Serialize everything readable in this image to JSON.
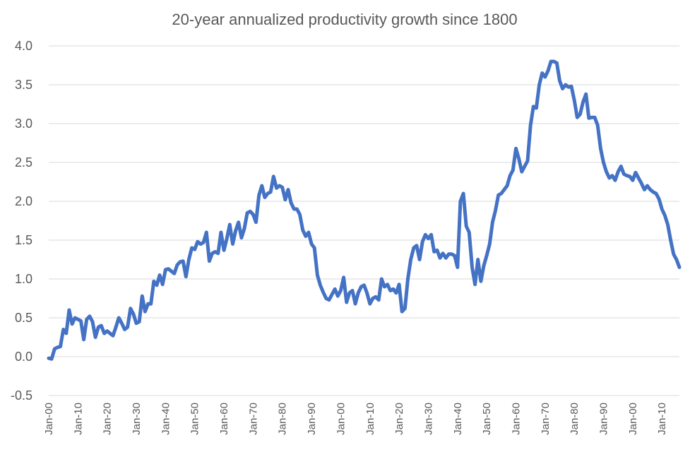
{
  "chart_data": {
    "type": "line",
    "title": "20-year annualized productivity growth since 1800",
    "xlabel": "",
    "ylabel": "",
    "ylim": [
      -0.5,
      4.0
    ],
    "yticks": [
      "-0.5",
      "0.0",
      "0.5",
      "1.0",
      "1.5",
      "2.0",
      "2.5",
      "3.0",
      "3.5",
      "4.0"
    ],
    "xticks": [
      {
        "label": "Jan-00",
        "year": 1800
      },
      {
        "label": "Jan-10",
        "year": 1810
      },
      {
        "label": "Jan-20",
        "year": 1820
      },
      {
        "label": "Jan-30",
        "year": 1830
      },
      {
        "label": "Jan-40",
        "year": 1840
      },
      {
        "label": "Jan-50",
        "year": 1850
      },
      {
        "label": "Jan-60",
        "year": 1860
      },
      {
        "label": "Jan-70",
        "year": 1870
      },
      {
        "label": "Jan-80",
        "year": 1880
      },
      {
        "label": "Jan-90",
        "year": 1890
      },
      {
        "label": "Jan-00",
        "year": 1900
      },
      {
        "label": "Jan-10",
        "year": 1910
      },
      {
        "label": "Jan-20",
        "year": 1920
      },
      {
        "label": "Jan-30",
        "year": 1930
      },
      {
        "label": "Jan-40",
        "year": 1940
      },
      {
        "label": "Jan-50",
        "year": 1950
      },
      {
        "label": "Jan-60",
        "year": 1960
      },
      {
        "label": "Jan-70",
        "year": 1970
      },
      {
        "label": "Jan-80",
        "year": 1980
      },
      {
        "label": "Jan-90",
        "year": 1990
      },
      {
        "label": "Jan-00",
        "year": 2000
      },
      {
        "label": "Jan-10",
        "year": 2010
      }
    ],
    "xlim": [
      1800,
      2016
    ],
    "grid": true,
    "legend": "none",
    "series": [
      {
        "color": "#4472c4",
        "points": [
          [
            1800,
            -0.02
          ],
          [
            1801,
            -0.03
          ],
          [
            1802,
            0.1
          ],
          [
            1803,
            0.12
          ],
          [
            1804,
            0.13
          ],
          [
            1805,
            0.35
          ],
          [
            1806,
            0.3
          ],
          [
            1807,
            0.6
          ],
          [
            1808,
            0.42
          ],
          [
            1809,
            0.5
          ],
          [
            1810,
            0.48
          ],
          [
            1811,
            0.46
          ],
          [
            1812,
            0.22
          ],
          [
            1813,
            0.48
          ],
          [
            1814,
            0.52
          ],
          [
            1815,
            0.45
          ],
          [
            1816,
            0.25
          ],
          [
            1817,
            0.38
          ],
          [
            1818,
            0.4
          ],
          [
            1819,
            0.3
          ],
          [
            1820,
            0.33
          ],
          [
            1821,
            0.3
          ],
          [
            1822,
            0.27
          ],
          [
            1823,
            0.38
          ],
          [
            1824,
            0.5
          ],
          [
            1825,
            0.43
          ],
          [
            1826,
            0.35
          ],
          [
            1827,
            0.38
          ],
          [
            1828,
            0.62
          ],
          [
            1829,
            0.55
          ],
          [
            1830,
            0.43
          ],
          [
            1831,
            0.45
          ],
          [
            1832,
            0.78
          ],
          [
            1833,
            0.58
          ],
          [
            1834,
            0.68
          ],
          [
            1835,
            0.68
          ],
          [
            1836,
            0.97
          ],
          [
            1837,
            0.92
          ],
          [
            1838,
            1.05
          ],
          [
            1839,
            0.93
          ],
          [
            1840,
            1.12
          ],
          [
            1841,
            1.13
          ],
          [
            1842,
            1.1
          ],
          [
            1843,
            1.07
          ],
          [
            1844,
            1.18
          ],
          [
            1845,
            1.22
          ],
          [
            1846,
            1.23
          ],
          [
            1847,
            1.03
          ],
          [
            1848,
            1.25
          ],
          [
            1849,
            1.4
          ],
          [
            1850,
            1.38
          ],
          [
            1851,
            1.48
          ],
          [
            1852,
            1.45
          ],
          [
            1853,
            1.47
          ],
          [
            1854,
            1.6
          ],
          [
            1855,
            1.23
          ],
          [
            1856,
            1.33
          ],
          [
            1857,
            1.35
          ],
          [
            1858,
            1.33
          ],
          [
            1859,
            1.6
          ],
          [
            1860,
            1.37
          ],
          [
            1861,
            1.52
          ],
          [
            1862,
            1.7
          ],
          [
            1863,
            1.45
          ],
          [
            1864,
            1.62
          ],
          [
            1865,
            1.73
          ],
          [
            1866,
            1.53
          ],
          [
            1867,
            1.65
          ],
          [
            1868,
            1.85
          ],
          [
            1869,
            1.87
          ],
          [
            1870,
            1.83
          ],
          [
            1871,
            1.73
          ],
          [
            1872,
            2.08
          ],
          [
            1873,
            2.2
          ],
          [
            1874,
            2.05
          ],
          [
            1875,
            2.1
          ],
          [
            1876,
            2.12
          ],
          [
            1877,
            2.32
          ],
          [
            1878,
            2.17
          ],
          [
            1879,
            2.2
          ],
          [
            1880,
            2.18
          ],
          [
            1881,
            2.02
          ],
          [
            1882,
            2.15
          ],
          [
            1883,
            1.98
          ],
          [
            1884,
            1.9
          ],
          [
            1885,
            1.9
          ],
          [
            1886,
            1.83
          ],
          [
            1887,
            1.63
          ],
          [
            1888,
            1.55
          ],
          [
            1889,
            1.6
          ],
          [
            1890,
            1.45
          ],
          [
            1891,
            1.4
          ],
          [
            1892,
            1.05
          ],
          [
            1893,
            0.92
          ],
          [
            1894,
            0.83
          ],
          [
            1895,
            0.75
          ],
          [
            1896,
            0.73
          ],
          [
            1897,
            0.8
          ],
          [
            1898,
            0.87
          ],
          [
            1899,
            0.78
          ],
          [
            1900,
            0.85
          ],
          [
            1901,
            1.02
          ],
          [
            1902,
            0.7
          ],
          [
            1903,
            0.82
          ],
          [
            1904,
            0.85
          ],
          [
            1905,
            0.68
          ],
          [
            1906,
            0.82
          ],
          [
            1907,
            0.9
          ],
          [
            1908,
            0.92
          ],
          [
            1909,
            0.82
          ],
          [
            1910,
            0.68
          ],
          [
            1911,
            0.75
          ],
          [
            1912,
            0.77
          ],
          [
            1913,
            0.73
          ],
          [
            1914,
            1.0
          ],
          [
            1915,
            0.9
          ],
          [
            1916,
            0.93
          ],
          [
            1917,
            0.85
          ],
          [
            1918,
            0.87
          ],
          [
            1919,
            0.82
          ],
          [
            1920,
            0.93
          ],
          [
            1921,
            0.58
          ],
          [
            1922,
            0.62
          ],
          [
            1923,
            1.0
          ],
          [
            1924,
            1.25
          ],
          [
            1925,
            1.4
          ],
          [
            1926,
            1.43
          ],
          [
            1927,
            1.25
          ],
          [
            1928,
            1.48
          ],
          [
            1929,
            1.57
          ],
          [
            1930,
            1.52
          ],
          [
            1931,
            1.57
          ],
          [
            1932,
            1.35
          ],
          [
            1933,
            1.37
          ],
          [
            1934,
            1.27
          ],
          [
            1935,
            1.33
          ],
          [
            1936,
            1.27
          ],
          [
            1937,
            1.32
          ],
          [
            1938,
            1.32
          ],
          [
            1939,
            1.3
          ],
          [
            1940,
            1.15
          ],
          [
            1941,
            2.0
          ],
          [
            1942,
            2.1
          ],
          [
            1943,
            1.68
          ],
          [
            1944,
            1.6
          ],
          [
            1945,
            1.15
          ],
          [
            1946,
            0.93
          ],
          [
            1947,
            1.25
          ],
          [
            1948,
            0.97
          ],
          [
            1949,
            1.17
          ],
          [
            1950,
            1.3
          ],
          [
            1951,
            1.45
          ],
          [
            1952,
            1.73
          ],
          [
            1953,
            1.88
          ],
          [
            1954,
            2.08
          ],
          [
            1955,
            2.1
          ],
          [
            1956,
            2.15
          ],
          [
            1957,
            2.2
          ],
          [
            1958,
            2.33
          ],
          [
            1959,
            2.4
          ],
          [
            1960,
            2.68
          ],
          [
            1961,
            2.55
          ],
          [
            1962,
            2.38
          ],
          [
            1963,
            2.45
          ],
          [
            1964,
            2.52
          ],
          [
            1965,
            2.98
          ],
          [
            1966,
            3.22
          ],
          [
            1967,
            3.2
          ],
          [
            1968,
            3.5
          ],
          [
            1969,
            3.65
          ],
          [
            1970,
            3.6
          ],
          [
            1971,
            3.68
          ],
          [
            1972,
            3.8
          ],
          [
            1973,
            3.8
          ],
          [
            1974,
            3.78
          ],
          [
            1975,
            3.55
          ],
          [
            1976,
            3.45
          ],
          [
            1977,
            3.5
          ],
          [
            1978,
            3.47
          ],
          [
            1979,
            3.48
          ],
          [
            1980,
            3.3
          ],
          [
            1981,
            3.08
          ],
          [
            1982,
            3.12
          ],
          [
            1983,
            3.28
          ],
          [
            1984,
            3.38
          ],
          [
            1985,
            3.07
          ],
          [
            1986,
            3.08
          ],
          [
            1987,
            3.08
          ],
          [
            1988,
            2.98
          ],
          [
            1989,
            2.68
          ],
          [
            1990,
            2.5
          ],
          [
            1991,
            2.38
          ],
          [
            1992,
            2.3
          ],
          [
            1993,
            2.33
          ],
          [
            1994,
            2.27
          ],
          [
            1995,
            2.38
          ],
          [
            1996,
            2.45
          ],
          [
            1997,
            2.35
          ],
          [
            1998,
            2.33
          ],
          [
            1999,
            2.32
          ],
          [
            2000,
            2.27
          ],
          [
            2001,
            2.37
          ],
          [
            2002,
            2.3
          ],
          [
            2003,
            2.23
          ],
          [
            2004,
            2.15
          ],
          [
            2005,
            2.2
          ],
          [
            2006,
            2.15
          ],
          [
            2007,
            2.12
          ],
          [
            2008,
            2.1
          ],
          [
            2009,
            2.03
          ],
          [
            2010,
            1.9
          ],
          [
            2011,
            1.82
          ],
          [
            2012,
            1.7
          ],
          [
            2013,
            1.5
          ],
          [
            2014,
            1.32
          ],
          [
            2015,
            1.25
          ],
          [
            2016,
            1.15
          ]
        ]
      }
    ]
  }
}
